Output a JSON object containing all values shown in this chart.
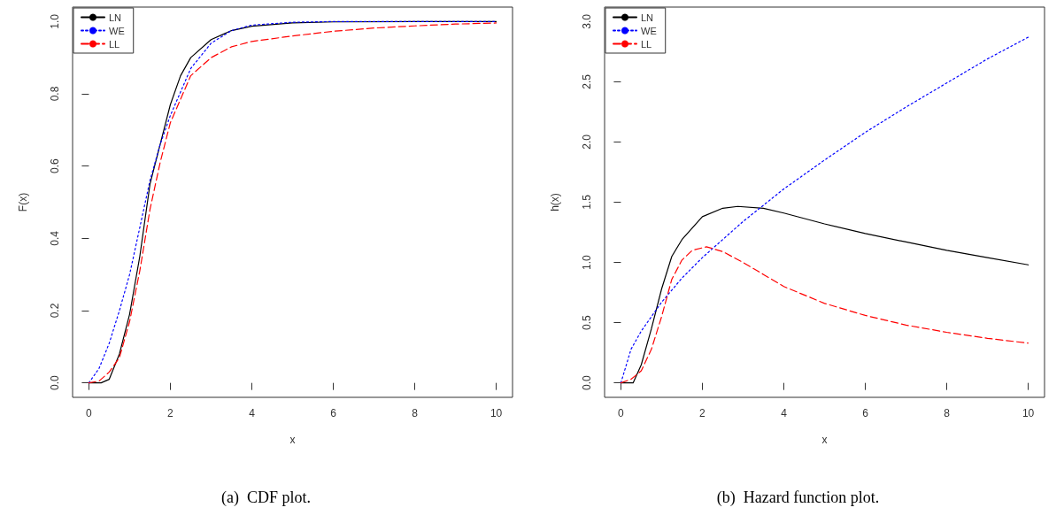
{
  "chart_data": [
    {
      "type": "line",
      "xlabel": "x",
      "ylabel": "F(x)",
      "annotations": [
        "(a)  CDF plot."
      ],
      "legend": "top left",
      "grid": false,
      "xlim": [
        -0.4,
        10.4
      ],
      "xticks": [
        0,
        2,
        4,
        6,
        8,
        10
      ],
      "ylim": [
        -0.04,
        1.04
      ],
      "yticks": [
        {
          "value": 0,
          "label": "0.0"
        },
        {
          "value": 0.2,
          "label": "0.2"
        },
        {
          "value": 0.4,
          "label": "0.4"
        },
        {
          "value": 0.6,
          "label": "0.6"
        },
        {
          "value": 0.8,
          "label": "0.8"
        },
        {
          "value": 1,
          "label": "1.0"
        }
      ],
      "series": [
        {
          "name": "LN",
          "color": "#000000",
          "line_style": "solid",
          "x": [
            0,
            0.3,
            0.5,
            0.75,
            1,
            1.25,
            1.5,
            1.75,
            2,
            2.25,
            2.5,
            3,
            3.5,
            4,
            5,
            6,
            8,
            10
          ],
          "values": [
            0,
            0,
            0.01,
            0.08,
            0.19,
            0.35,
            0.55,
            0.66,
            0.77,
            0.85,
            0.9,
            0.95,
            0.975,
            0.987,
            0.996,
            0.999,
            1,
            1
          ]
        },
        {
          "name": "WE",
          "color": "#0000ff",
          "line_style": "dotted",
          "x": [
            0,
            0.25,
            0.5,
            0.75,
            1,
            1.25,
            1.5,
            1.75,
            2,
            2.5,
            3,
            3.5,
            4,
            5,
            6,
            8,
            10
          ],
          "values": [
            0,
            0.04,
            0.11,
            0.2,
            0.3,
            0.43,
            0.56,
            0.66,
            0.74,
            0.87,
            0.94,
            0.975,
            0.99,
            0.998,
            1,
            1,
            1
          ]
        },
        {
          "name": "LL",
          "color": "#ff0000",
          "line_style": "dashed",
          "x": [
            0,
            0.25,
            0.5,
            0.75,
            1,
            1.25,
            1.5,
            1.75,
            2,
            2.5,
            3,
            3.5,
            4,
            5,
            6,
            7,
            8,
            9,
            10
          ],
          "values": [
            0,
            0.005,
            0.03,
            0.07,
            0.17,
            0.31,
            0.48,
            0.61,
            0.72,
            0.85,
            0.9,
            0.93,
            0.945,
            0.96,
            0.973,
            0.982,
            0.988,
            0.993,
            0.996
          ]
        }
      ]
    },
    {
      "type": "line",
      "xlabel": "x",
      "ylabel": "h(x)",
      "annotations": [
        "(b)  Hazard function plot."
      ],
      "legend": "top left",
      "grid": false,
      "xlim": [
        -0.4,
        10.4
      ],
      "xticks": [
        0,
        2,
        4,
        6,
        8,
        10
      ],
      "ylim": [
        -0.12,
        3.12
      ],
      "yticks": [
        {
          "value": 0,
          "label": "0.0"
        },
        {
          "value": 0.5,
          "label": "0.5"
        },
        {
          "value": 1,
          "label": "1.0"
        },
        {
          "value": 1.5,
          "label": "1.5"
        },
        {
          "value": 2,
          "label": "2.0"
        },
        {
          "value": 2.5,
          "label": "2.5"
        },
        {
          "value": 3,
          "label": "3.0"
        }
      ],
      "series": [
        {
          "name": "LN",
          "color": "#000000",
          "line_style": "solid",
          "x": [
            0,
            0.3,
            0.5,
            0.75,
            1,
            1.25,
            1.5,
            2,
            2.5,
            2.87,
            3.5,
            4,
            5,
            6,
            7,
            8,
            9,
            10
          ],
          "values": [
            0,
            0,
            0.15,
            0.45,
            0.78,
            1.05,
            1.19,
            1.38,
            1.45,
            1.465,
            1.45,
            1.41,
            1.32,
            1.24,
            1.17,
            1.1,
            1.04,
            0.98
          ]
        },
        {
          "name": "WE",
          "color": "#0000ff",
          "line_style": "dotted",
          "x": [
            0,
            0.25,
            0.5,
            1,
            1.5,
            2,
            3,
            4,
            5,
            6,
            7,
            8,
            9,
            10
          ],
          "values": [
            0,
            0.28,
            0.43,
            0.67,
            0.87,
            1.04,
            1.34,
            1.61,
            1.85,
            2.08,
            2.29,
            2.49,
            2.69,
            2.87
          ]
        },
        {
          "name": "LL",
          "color": "#ff0000",
          "line_style": "dashed",
          "x": [
            0,
            0.25,
            0.5,
            0.75,
            1,
            1.25,
            1.5,
            1.75,
            2.1,
            2.5,
            3,
            3.5,
            4,
            5,
            6,
            7,
            8,
            9,
            10
          ],
          "values": [
            0,
            0.03,
            0.1,
            0.28,
            0.55,
            0.86,
            1.02,
            1.1,
            1.13,
            1.09,
            1.0,
            0.9,
            0.8,
            0.66,
            0.56,
            0.48,
            0.42,
            0.37,
            0.33
          ]
        }
      ]
    }
  ]
}
